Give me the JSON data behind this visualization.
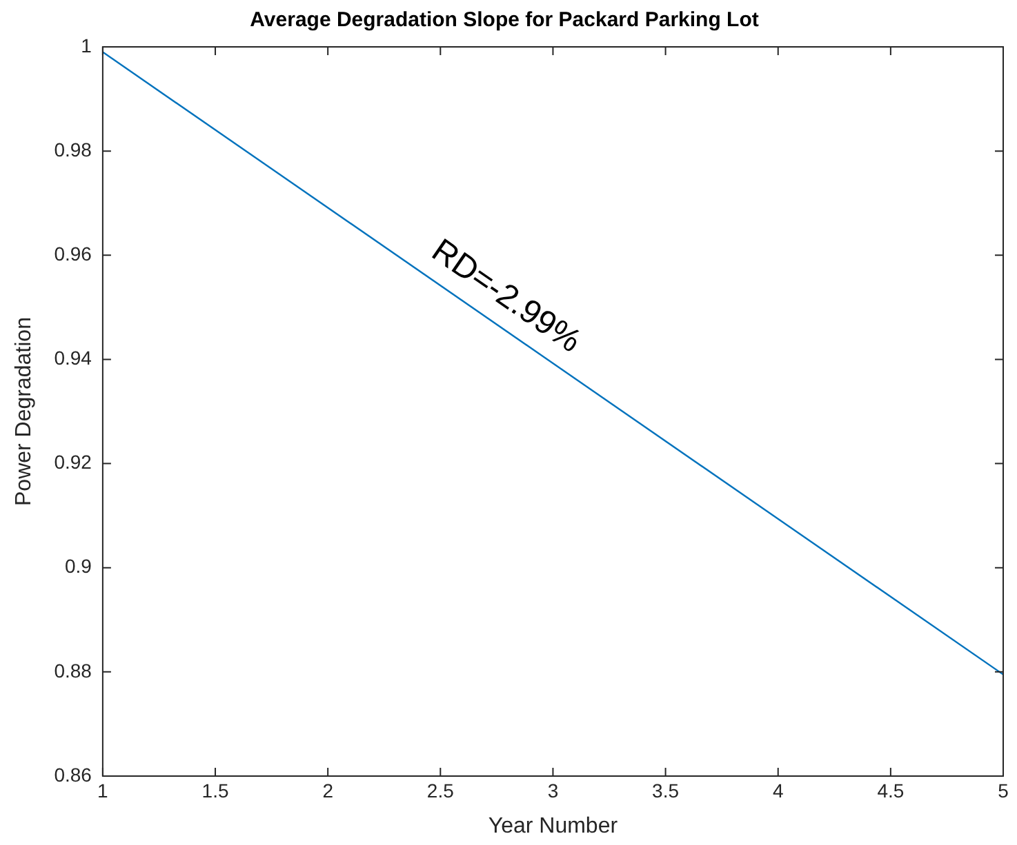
{
  "chart_data": {
    "type": "line",
    "title": "Average Degradation Slope for Packard Parking Lot",
    "xlabel": "Year Number",
    "ylabel": "Power Degradation",
    "x": [
      1,
      5
    ],
    "series": [
      {
        "color": "#0072bd",
        "values": [
          0.999,
          0.8795
        ]
      }
    ],
    "xlim": [
      1,
      5
    ],
    "xticks": [
      1,
      1.5,
      2,
      2.5,
      3,
      3.5,
      4,
      4.5,
      5
    ],
    "ylim": [
      0.86,
      1
    ],
    "yticks": [
      0.86,
      0.88,
      0.9,
      0.92,
      0.94,
      0.96,
      0.98,
      1
    ],
    "grid": false,
    "legend": false,
    "marker": "none",
    "line_style": "solid",
    "annotations": [
      "RD=-2.99%"
    ]
  }
}
